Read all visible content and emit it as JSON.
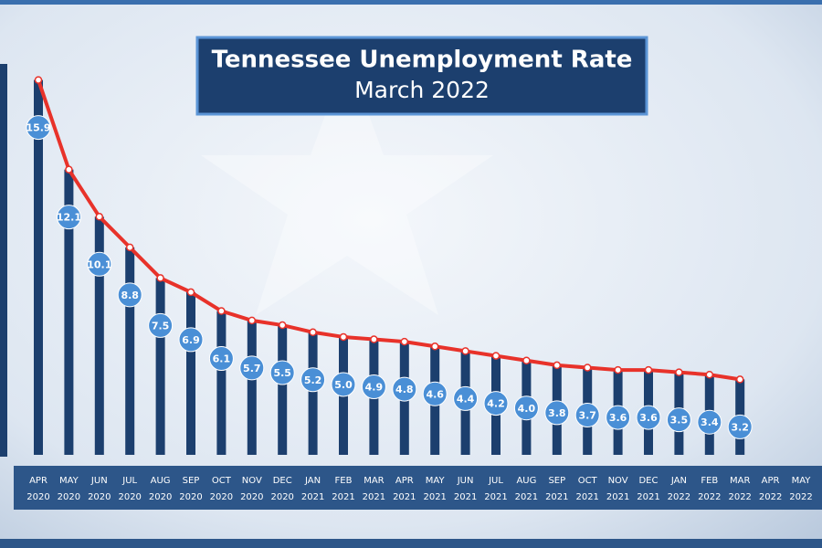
{
  "chart_data": {
    "type": "bar-line",
    "title": "Tennessee Unemployment Rate",
    "subtitle": "March 2022",
    "categories": [
      "APR 2020",
      "MAY 2020",
      "JUN 2020",
      "JUL 2020",
      "AUG 2020",
      "SEP 2020",
      "OCT 2020",
      "NOV 2020",
      "DEC 2020",
      "JAN 2021",
      "FEB 2021",
      "MAR 2021",
      "APR 2021",
      "MAY 2021",
      "JUN 2021",
      "JUL 2021",
      "AUG 2021",
      "SEP 2021",
      "OCT 2021",
      "NOV 2021",
      "DEC 2021",
      "JAN 2022",
      "FEB 2022",
      "MAR 2022",
      "APR 2022",
      "MAY 2022"
    ],
    "values": [
      15.9,
      12.1,
      10.1,
      8.8,
      7.5,
      6.9,
      6.1,
      5.7,
      5.5,
      5.2,
      5.0,
      4.9,
      4.8,
      4.6,
      4.4,
      4.2,
      4.0,
      3.8,
      3.7,
      3.6,
      3.6,
      3.5,
      3.4,
      3.2,
      null,
      null
    ],
    "value_labels": [
      "15.9",
      "12.1",
      "10.1",
      "8.8",
      "7.5",
      "6.9",
      "6.1",
      "5.7",
      "5.5",
      "5.2",
      "5.0",
      "4.9",
      "4.8",
      "4.6",
      "4.4",
      "4.2",
      "4.0",
      "3.8",
      "3.7",
      "3.6",
      "3.6",
      "3.5",
      "3.4",
      "3.2",
      null,
      null
    ],
    "bar_color": "#1c3f6e",
    "line_color": "#e8322a",
    "label_color": "#4a8fd6",
    "ylim": [
      0,
      16
    ]
  }
}
